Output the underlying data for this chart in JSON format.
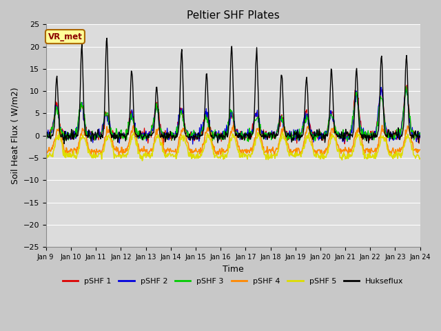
{
  "title": "Peltier SHF Plates",
  "xlabel": "Time",
  "ylabel": "Soil Heat Flux ( W/m2)",
  "ylim": [
    -25,
    25
  ],
  "xlim": [
    0,
    15
  ],
  "x_tick_labels": [
    "Jan 9 ",
    "Jan 10",
    "Jan 11",
    "Jan 12",
    "Jan 13",
    "Jan 14",
    "Jan 15",
    "Jan 16",
    "Jan 17",
    "Jan 18",
    "Jan 19",
    "Jan 20",
    "Jan 21",
    "Jan 22",
    "Jan 23",
    "Jan 24"
  ],
  "colors": {
    "pSHF1": "#dd0000",
    "pSHF2": "#0000dd",
    "pSHF3": "#00cc00",
    "pSHF4": "#ff8800",
    "pSHF5": "#dddd00",
    "Hukseflux": "#000000"
  },
  "legend_labels": [
    "pSHF 1",
    "pSHF 2",
    "pSHF 3",
    "pSHF 4",
    "pSHF 5",
    "Hukseflux"
  ],
  "bg_color": "#dcdcdc",
  "fig_bg_color": "#c8c8c8",
  "annotation_text": "VR_met",
  "annotation_bg": "#ffff99",
  "annotation_border": "#aa6600"
}
